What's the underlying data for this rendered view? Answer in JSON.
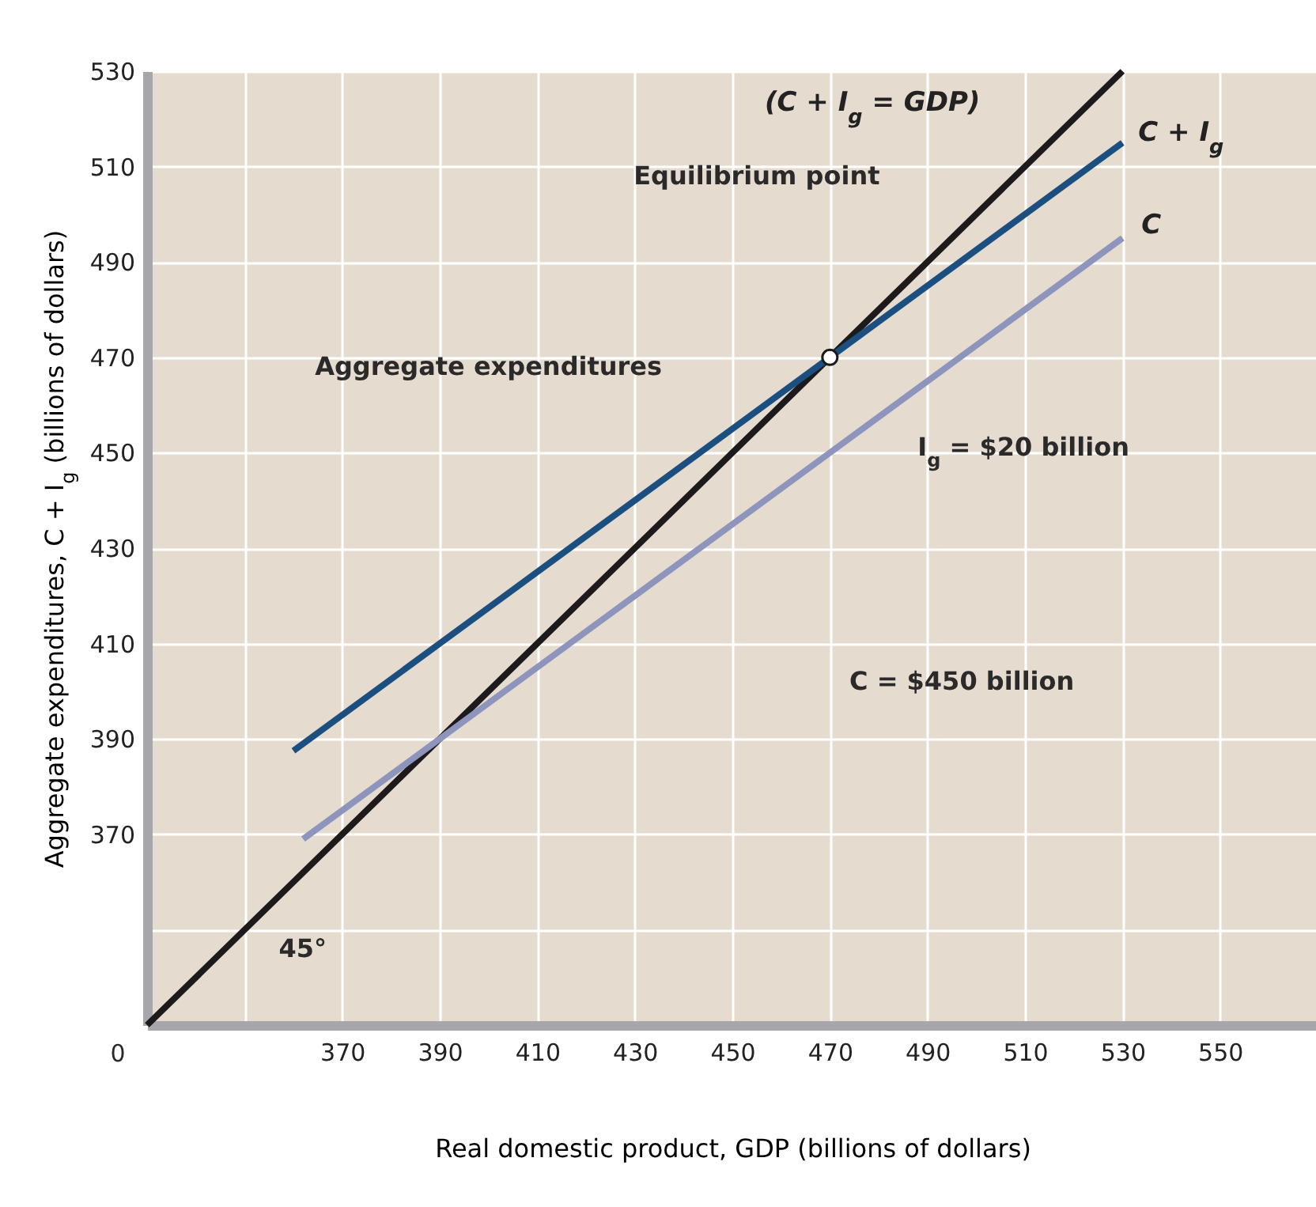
{
  "chart_data": {
    "type": "line",
    "xlabel": "Real domestic product, GDP (billions of dollars)",
    "ylabel": "Aggregate expenditures, C + I$_{g}$ (billions of dollars)",
    "series": [
      {
        "name": "(C + I$_{g}$ = GDP)",
        "color": "#1c1a1a",
        "x": [
          330,
          530
        ],
        "values": [
          330,
          530
        ]
      },
      {
        "name": "C + I$_{g}$",
        "color": "#1b4f80",
        "x": [
          360,
          530
        ],
        "values": [
          387.5,
          515
        ]
      },
      {
        "name": "C",
        "color": "#8d95bd",
        "x": [
          362,
          530
        ],
        "values": [
          369,
          495
        ]
      },
      {
        "type": "scatter",
        "marker": "circle",
        "color": "#ffffff",
        "x": [
          470
        ],
        "values": [
          470
        ]
      }
    ],
    "annotations": [
      "Equilibrium point",
      "Aggregate expenditures",
      "I$_{g}$ = $20 billion",
      "C = $450 billion",
      "45°",
      "0"
    ],
    "xlim": [
      330,
      570
    ],
    "ylim": [
      330,
      530
    ],
    "xticks": [
      {
        "value": 350,
        "label": null
      },
      370,
      390,
      410,
      430,
      450,
      470,
      490,
      510,
      530,
      550
    ],
    "yticks": [
      {
        "value": 350,
        "label": null
      },
      370,
      390,
      410,
      430,
      450,
      470,
      490,
      510,
      530
    ],
    "grid": true
  }
}
